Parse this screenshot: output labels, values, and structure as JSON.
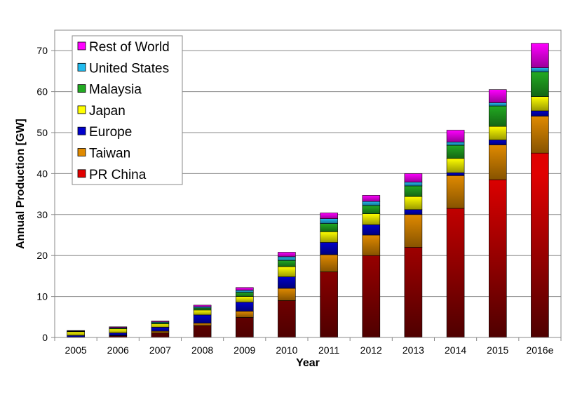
{
  "chart_data": {
    "type": "bar",
    "stacked": true,
    "title": "",
    "xlabel": "Year",
    "ylabel": "Annual Production [GW]",
    "ylim": [
      0,
      75
    ],
    "yticks": [
      0,
      10,
      20,
      30,
      40,
      50,
      60,
      70
    ],
    "grid": "horizontal",
    "legend_position": "top-left",
    "categories": [
      "2005",
      "2006",
      "2007",
      "2008",
      "2009",
      "2010",
      "2011",
      "2012",
      "2013",
      "2014",
      "2015",
      "2016e"
    ],
    "series": [
      {
        "name": "PR China",
        "color": "#e00000",
        "values": [
          0.1,
          0.4,
          1.1,
          2.9,
          4.9,
          9.0,
          16.0,
          20.0,
          22.0,
          31.5,
          38.5,
          45.0
        ]
      },
      {
        "name": "Taiwan",
        "color": "#e08a00",
        "values": [
          0.0,
          0.1,
          0.4,
          0.6,
          1.5,
          3.0,
          4.2,
          5.0,
          8.0,
          8.0,
          8.5,
          9.0
        ]
      },
      {
        "name": "Europe",
        "color": "#0000cc",
        "values": [
          0.4,
          0.6,
          1.0,
          2.0,
          2.2,
          2.8,
          3.0,
          2.5,
          1.2,
          0.7,
          1.2,
          1.3
        ]
      },
      {
        "name": "Japan",
        "color": "#ffff00",
        "values": [
          0.9,
          1.0,
          0.8,
          1.2,
          1.4,
          2.5,
          2.6,
          2.7,
          3.2,
          3.5,
          3.3,
          3.5
        ]
      },
      {
        "name": "Malaysia",
        "color": "#22aa22",
        "values": [
          0.1,
          0.2,
          0.3,
          0.5,
          1.0,
          1.5,
          2.0,
          2.0,
          2.6,
          3.2,
          5.0,
          6.0
        ]
      },
      {
        "name": "United States",
        "color": "#22bbee",
        "values": [
          0.1,
          0.1,
          0.2,
          0.3,
          0.5,
          0.9,
          1.2,
          1.0,
          0.9,
          0.8,
          0.8,
          1.0
        ]
      },
      {
        "name": "Rest of World",
        "color": "#ff00ff",
        "values": [
          0.1,
          0.2,
          0.2,
          0.4,
          0.7,
          1.1,
          1.4,
          1.5,
          2.1,
          2.9,
          3.2,
          6.0
        ]
      }
    ]
  }
}
